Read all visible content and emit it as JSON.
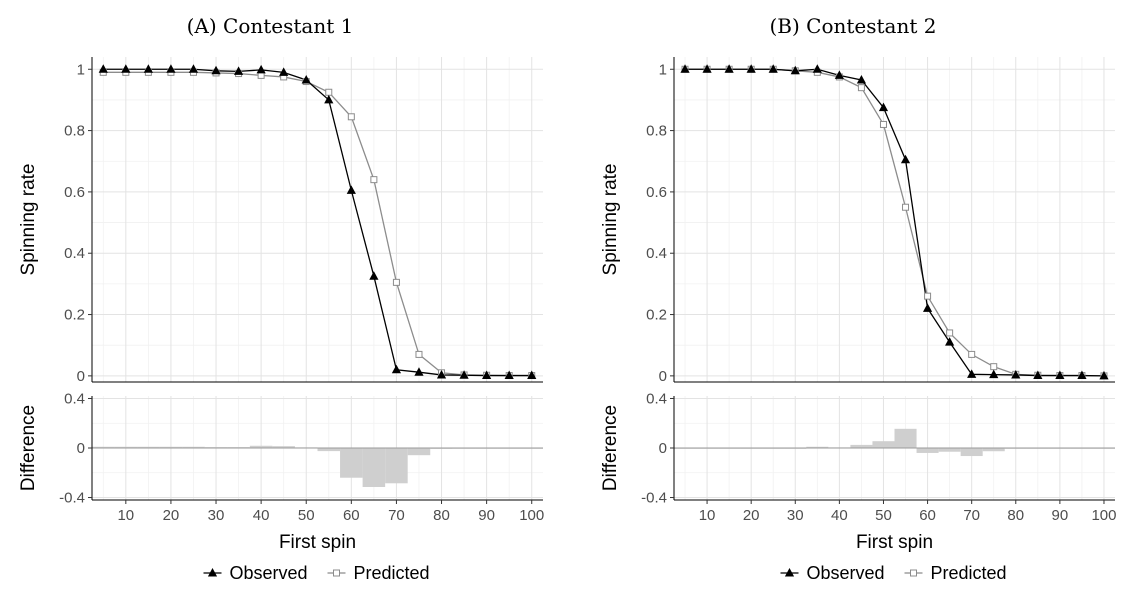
{
  "chart_data": [
    {
      "type": "line",
      "title": "(A) Contestant 1",
      "xlabel": "First spin",
      "ylabel": "Spinning rate",
      "diff_ylabel": "Difference",
      "x": [
        5,
        10,
        15,
        20,
        25,
        30,
        35,
        40,
        45,
        50,
        55,
        60,
        65,
        70,
        75,
        80,
        85,
        90,
        95,
        100
      ],
      "xticks": [
        "10",
        "20",
        "30",
        "40",
        "50",
        "60",
        "70",
        "80",
        "90",
        "100"
      ],
      "xtick_values": [
        10,
        20,
        30,
        40,
        50,
        60,
        70,
        80,
        90,
        100
      ],
      "xlim": [
        2.5,
        102.5
      ],
      "ylim": [
        -0.02,
        1.04
      ],
      "yticks": [
        "0",
        "0.2",
        "0.4",
        "0.6",
        "0.8",
        "1"
      ],
      "ytick_values": [
        0,
        0.2,
        0.4,
        0.6,
        0.8,
        1
      ],
      "diff_ylim": [
        -0.42,
        0.42
      ],
      "diff_yticks": [
        "-0.4",
        "0",
        "0.4"
      ],
      "diff_ytick_values": [
        -0.4,
        0,
        0.4
      ],
      "grid": true,
      "legend": "bottom",
      "series": [
        {
          "name": "Observed",
          "values": [
            1.0,
            1.0,
            1.0,
            1.0,
            1.0,
            0.995,
            0.993,
            0.998,
            0.99,
            0.965,
            0.9,
            0.605,
            0.325,
            0.02,
            0.012,
            0.003,
            0.002,
            0.001,
            0.001,
            0.001
          ]
        },
        {
          "name": "Predicted",
          "values": [
            0.99,
            0.99,
            0.99,
            0.99,
            0.99,
            0.988,
            0.986,
            0.98,
            0.975,
            0.96,
            0.925,
            0.845,
            0.64,
            0.305,
            0.07,
            0.01,
            0.003,
            0.002,
            0.001,
            0.001
          ]
        }
      ],
      "difference": [
        0.01,
        0.01,
        0.01,
        0.01,
        0.01,
        0.007,
        0.007,
        0.018,
        0.015,
        0.005,
        -0.025,
        -0.24,
        -0.315,
        -0.285,
        -0.058,
        -0.007,
        -0.001,
        -0.001,
        0.0,
        0.0
      ]
    },
    {
      "type": "line",
      "title": "(B) Contestant 2",
      "xlabel": "First spin",
      "ylabel": "Spinning rate",
      "diff_ylabel": "Difference",
      "x": [
        5,
        10,
        15,
        20,
        25,
        30,
        35,
        40,
        45,
        50,
        55,
        60,
        65,
        70,
        75,
        80,
        85,
        90,
        95,
        100
      ],
      "xticks": [
        "10",
        "20",
        "30",
        "40",
        "50",
        "60",
        "70",
        "80",
        "90",
        "100"
      ],
      "xtick_values": [
        10,
        20,
        30,
        40,
        50,
        60,
        70,
        80,
        90,
        100
      ],
      "xlim": [
        2.5,
        102.5
      ],
      "ylim": [
        -0.02,
        1.04
      ],
      "yticks": [
        "0",
        "0.2",
        "0.4",
        "0.6",
        "0.8",
        "1"
      ],
      "ytick_values": [
        0,
        0.2,
        0.4,
        0.6,
        0.8,
        1
      ],
      "diff_ylim": [
        -0.42,
        0.42
      ],
      "diff_yticks": [
        "-0.4",
        "0",
        "0.4"
      ],
      "diff_ytick_values": [
        -0.4,
        0,
        0.4
      ],
      "grid": true,
      "legend": "bottom",
      "series": [
        {
          "name": "Observed",
          "values": [
            1.0,
            1.0,
            1.0,
            1.0,
            1.0,
            0.995,
            1.0,
            0.98,
            0.965,
            0.875,
            0.705,
            0.22,
            0.11,
            0.005,
            0.004,
            0.003,
            0.001,
            0.001,
            0.001,
            0.0
          ]
        },
        {
          "name": "Predicted",
          "values": [
            1.0,
            1.0,
            1.0,
            1.0,
            1.0,
            0.995,
            0.99,
            0.975,
            0.94,
            0.82,
            0.55,
            0.26,
            0.14,
            0.07,
            0.03,
            0.005,
            0.002,
            0.001,
            0.001,
            0.0
          ]
        }
      ],
      "difference": [
        0.0,
        0.0,
        0.0,
        0.0,
        0.0,
        0.0,
        0.01,
        0.005,
        0.025,
        0.055,
        0.155,
        -0.04,
        -0.03,
        -0.065,
        -0.026,
        -0.002,
        -0.001,
        0.0,
        0.0,
        0.0
      ]
    }
  ],
  "legend_items": [
    "Observed",
    "Predicted"
  ],
  "colors": {
    "observed": "#000000",
    "predicted": "#8c8c8c",
    "bars": "#cfcfcf"
  }
}
